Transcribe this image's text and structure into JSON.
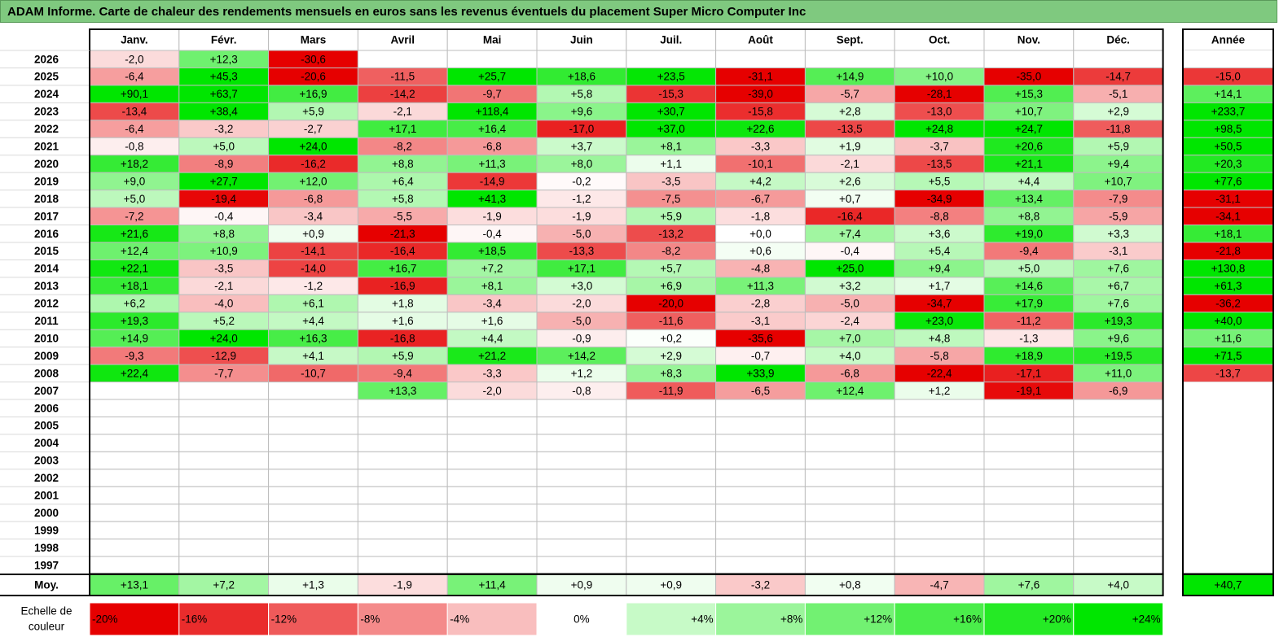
{
  "title": "ADAM Informe. Carte de chaleur des rendements mensuels en euros sans les revenus éventuels du placement Super Micro Computer Inc",
  "chart_data": {
    "type": "heatmap",
    "title": "ADAM Informe. Carte de chaleur des rendements mensuels en euros sans les revenus éventuels du placement Super Micro Computer Inc",
    "months": [
      "Janv.",
      "Févr.",
      "Mars",
      "Avril",
      "Mai",
      "Juin",
      "Juil.",
      "Août",
      "Sept.",
      "Oct.",
      "Nov.",
      "Déc."
    ],
    "year_header": "Année",
    "years": [
      "2026",
      "2025",
      "2024",
      "2023",
      "2022",
      "2021",
      "2020",
      "2019",
      "2018",
      "2017",
      "2016",
      "2015",
      "2014",
      "2013",
      "2012",
      "2011",
      "2010",
      "2009",
      "2008",
      "2007",
      "2006",
      "2005",
      "2004",
      "2003",
      "2002",
      "2001",
      "2000",
      "1999",
      "1998",
      "1997"
    ],
    "values": [
      [
        "-2,0",
        "+12,3",
        "-30,6",
        "",
        "",
        "",
        "",
        "",
        "",
        "",
        "",
        ""
      ],
      [
        "-6,4",
        "+45,3",
        "-20,6",
        "-11,5",
        "+25,7",
        "+18,6",
        "+23,5",
        "-31,1",
        "+14,9",
        "+10,0",
        "-35,0",
        "-14,7"
      ],
      [
        "+90,1",
        "+63,7",
        "+16,9",
        "-14,2",
        "-9,7",
        "+5,8",
        "-15,3",
        "-39,0",
        "-5,7",
        "-28,1",
        "+15,3",
        "-5,1"
      ],
      [
        "-13,4",
        "+38,4",
        "+5,9",
        "-2,1",
        "+118,4",
        "+9,6",
        "+30,7",
        "-15,8",
        "+2,8",
        "-13,0",
        "+10,7",
        "+2,9"
      ],
      [
        "-6,4",
        "-3,2",
        "-2,7",
        "+17,1",
        "+16,4",
        "-17,0",
        "+37,0",
        "+22,6",
        "-13,5",
        "+24,8",
        "+24,7",
        "-11,8"
      ],
      [
        "-0,8",
        "+5,0",
        "+24,0",
        "-8,2",
        "-6,8",
        "+3,7",
        "+8,1",
        "-3,3",
        "+1,9",
        "-3,7",
        "+20,6",
        "+5,9"
      ],
      [
        "+18,2",
        "-8,9",
        "-16,2",
        "+8,8",
        "+11,3",
        "+8,0",
        "+1,1",
        "-10,1",
        "-2,1",
        "-13,5",
        "+21,1",
        "+9,4"
      ],
      [
        "+9,0",
        "+27,7",
        "+12,0",
        "+6,4",
        "-14,9",
        "-0,2",
        "-3,5",
        "+4,2",
        "+2,6",
        "+5,5",
        "+4,4",
        "+10,7"
      ],
      [
        "+5,0",
        "-19,4",
        "-6,8",
        "+5,8",
        "+41,3",
        "-1,2",
        "-7,5",
        "-6,7",
        "+0,7",
        "-34,9",
        "+13,4",
        "-7,9"
      ],
      [
        "-7,2",
        "-0,4",
        "-3,4",
        "-5,5",
        "-1,9",
        "-1,9",
        "+5,9",
        "-1,8",
        "-16,4",
        "-8,8",
        "+8,8",
        "-5,9"
      ],
      [
        "+21,6",
        "+8,8",
        "+0,9",
        "-21,3",
        "-0,4",
        "-5,0",
        "-13,2",
        "+0,0",
        "+7,4",
        "+3,6",
        "+19,0",
        "+3,3"
      ],
      [
        "+12,4",
        "+10,9",
        "-14,1",
        "-16,4",
        "+18,5",
        "-13,3",
        "-8,2",
        "+0,6",
        "-0,4",
        "+5,4",
        "-9,4",
        "-3,1"
      ],
      [
        "+22,1",
        "-3,5",
        "-14,0",
        "+16,7",
        "+7,2",
        "+17,1",
        "+5,7",
        "-4,8",
        "+25,0",
        "+9,4",
        "+5,0",
        "+7,6"
      ],
      [
        "+18,1",
        "-2,1",
        "-1,2",
        "-16,9",
        "+8,1",
        "+3,0",
        "+6,9",
        "+11,3",
        "+3,2",
        "+1,7",
        "+14,6",
        "+6,7"
      ],
      [
        "+6,2",
        "-4,0",
        "+6,1",
        "+1,8",
        "-3,4",
        "-2,0",
        "-20,0",
        "-2,8",
        "-5,0",
        "-34,7",
        "+17,9",
        "+7,6"
      ],
      [
        "+19,3",
        "+5,2",
        "+4,4",
        "+1,6",
        "+1,6",
        "-5,0",
        "-11,6",
        "-3,1",
        "-2,4",
        "+23,0",
        "-11,2",
        "+19,3"
      ],
      [
        "+14,9",
        "+24,0",
        "+16,3",
        "-16,8",
        "+4,4",
        "-0,9",
        "+0,2",
        "-35,6",
        "+7,0",
        "+4,8",
        "-1,3",
        "+9,6"
      ],
      [
        "-9,3",
        "-12,9",
        "+4,1",
        "+5,9",
        "+21,2",
        "+14,2",
        "+2,9",
        "-0,7",
        "+4,0",
        "-5,8",
        "+18,9",
        "+19,5"
      ],
      [
        "+22,4",
        "-7,7",
        "-10,7",
        "-9,4",
        "-3,3",
        "+1,2",
        "+8,3",
        "+33,9",
        "-6,8",
        "-22,4",
        "-17,1",
        "+11,0"
      ],
      [
        "",
        "",
        "",
        "+13,3",
        "-2,0",
        "-0,8",
        "-11,9",
        "-6,5",
        "+12,4",
        "+1,2",
        "-19,1",
        "-6,9"
      ],
      [
        "",
        "",
        "",
        "",
        "",
        "",
        "",
        "",
        "",
        "",
        "",
        ""
      ],
      [
        "",
        "",
        "",
        "",
        "",
        "",
        "",
        "",
        "",
        "",
        "",
        ""
      ],
      [
        "",
        "",
        "",
        "",
        "",
        "",
        "",
        "",
        "",
        "",
        "",
        ""
      ],
      [
        "",
        "",
        "",
        "",
        "",
        "",
        "",
        "",
        "",
        "",
        "",
        ""
      ],
      [
        "",
        "",
        "",
        "",
        "",
        "",
        "",
        "",
        "",
        "",
        "",
        ""
      ],
      [
        "",
        "",
        "",
        "",
        "",
        "",
        "",
        "",
        "",
        "",
        "",
        ""
      ],
      [
        "",
        "",
        "",
        "",
        "",
        "",
        "",
        "",
        "",
        "",
        "",
        ""
      ],
      [
        "",
        "",
        "",
        "",
        "",
        "",
        "",
        "",
        "",
        "",
        "",
        ""
      ],
      [
        "",
        "",
        "",
        "",
        "",
        "",
        "",
        "",
        "",
        "",
        "",
        ""
      ],
      [
        "",
        "",
        "",
        "",
        "",
        "",
        "",
        "",
        "",
        "",
        "",
        ""
      ]
    ],
    "annual": [
      "",
      "-15,0",
      "+14,1",
      "+233,7",
      "+98,5",
      "+50,5",
      "+20,3",
      "+77,6",
      "-31,1",
      "-34,1",
      "+18,1",
      "-21,8",
      "+130,8",
      "+61,3",
      "-36,2",
      "+40,0",
      "+11,6",
      "+71,5",
      "-13,7",
      "",
      "",
      "",
      "",
      "",
      "",
      "",
      "",
      "",
      "",
      ""
    ],
    "average_label": "Moy.",
    "averages": [
      "+13,1",
      "+7,2",
      "+1,3",
      "-1,9",
      "+11,4",
      "+0,9",
      "+0,9",
      "-3,2",
      "+0,8",
      "-4,7",
      "+7,6",
      "+4,0"
    ],
    "average_annual": "+40,7",
    "scale_label_line1": "Echelle de",
    "scale_label_line2": "couleur",
    "scale": [
      "-20%",
      "-16%",
      "-12%",
      "-8%",
      "-4%",
      "0%",
      "+4%",
      "+8%",
      "+12%",
      "+16%",
      "+20%",
      "+24%"
    ],
    "scale_values": [
      -20,
      -16,
      -12,
      -8,
      -4,
      0,
      4,
      8,
      12,
      16,
      20,
      24
    ]
  }
}
